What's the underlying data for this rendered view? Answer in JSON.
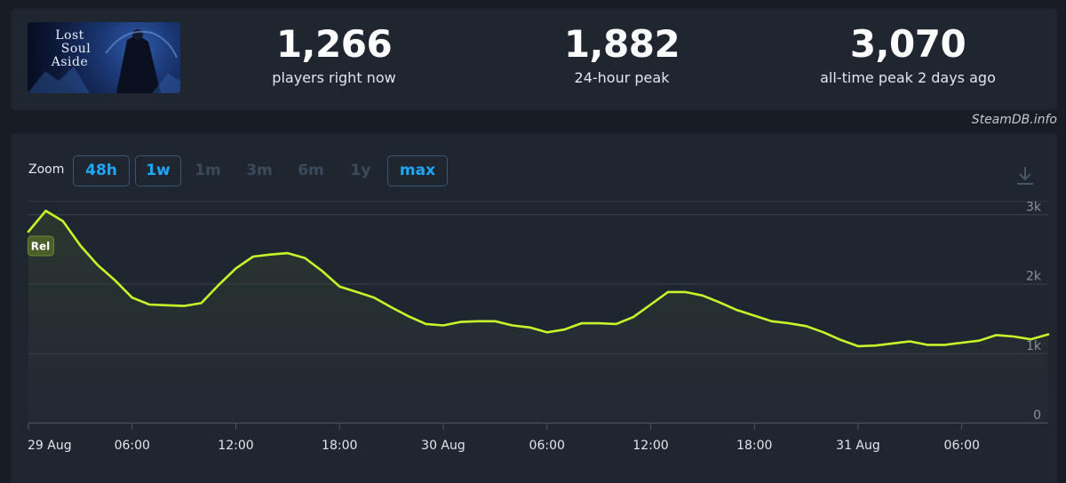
{
  "header": {
    "game_art_title_lines": [
      "Lost",
      "Soul",
      "Aside"
    ],
    "stats": [
      {
        "value": "1,266",
        "label": "players right now"
      },
      {
        "value": "1,882",
        "label": "24-hour peak"
      },
      {
        "value": "3,070",
        "label": "all-time peak 2 days ago"
      }
    ]
  },
  "credit": "SteamDB.info",
  "zoom": {
    "label": "Zoom",
    "options": [
      {
        "label": "48h",
        "active": true
      },
      {
        "label": "1w",
        "active": true
      },
      {
        "label": "1m",
        "active": false
      },
      {
        "label": "3m",
        "active": false
      },
      {
        "label": "6m",
        "active": false
      },
      {
        "label": "1y",
        "active": false
      },
      {
        "label": "max",
        "active": true
      }
    ]
  },
  "icons": {
    "download": "download-icon"
  },
  "colors": {
    "line": "#c7f52a",
    "active_button": "#1ea7ff",
    "marker": "#4a5f28"
  },
  "chart_data": {
    "type": "line",
    "series": [
      {
        "values": [
          2750,
          3050,
          2900,
          2550,
          2270,
          2050,
          1800,
          1700,
          1690,
          1680,
          1720,
          1980,
          2220,
          2390,
          2420,
          2440,
          2370,
          2180,
          1960,
          1880,
          1800,
          1660,
          1530,
          1420,
          1400,
          1450,
          1460,
          1460,
          1400,
          1370,
          1300,
          1340,
          1430,
          1430,
          1420,
          1520,
          1700,
          1880,
          1880,
          1830,
          1730,
          1620,
          1540,
          1460,
          1430,
          1390,
          1300,
          1190,
          1100,
          1110,
          1140,
          1170,
          1120,
          1120,
          1150,
          1180,
          1260,
          1240,
          1200,
          1270
        ]
      }
    ],
    "x_start": "2025-08-29 00:00",
    "x_step_hours": 1,
    "x_tick_labels": [
      "29 Aug",
      "06:00",
      "12:00",
      "18:00",
      "30 Aug",
      "06:00",
      "12:00",
      "18:00",
      "31 Aug",
      "06:00"
    ],
    "x_tick_hours": [
      0,
      6,
      12,
      18,
      24,
      30,
      36,
      42,
      48,
      54
    ],
    "y_tick_labels": [
      "0",
      "1k",
      "2k",
      "3k"
    ],
    "y_ticks": [
      0,
      1000,
      2000,
      3000
    ],
    "ylim": [
      0,
      3400
    ],
    "grid": true,
    "marker": {
      "label": "Rel",
      "x_hour": 1
    }
  }
}
